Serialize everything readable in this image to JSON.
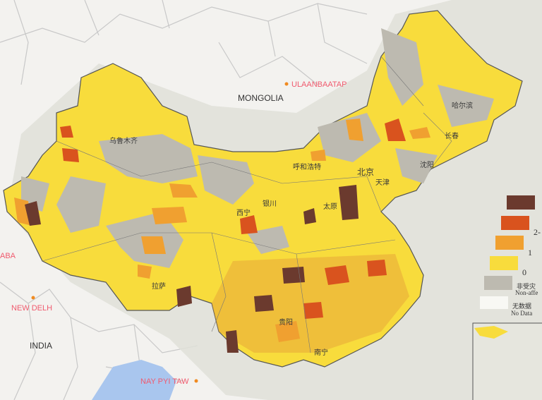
{
  "basemap": {
    "countries": [
      "MONGOLIA",
      "INDIA"
    ],
    "capitals": [
      "ULAANBAATAP",
      "NEW DELH",
      "NAY PYI TAW",
      "ABA"
    ]
  },
  "map_labels": [
    "乌鲁木齐",
    "哈尔滨",
    "长春",
    "沈阳",
    "呼和浩特",
    "北京",
    "天津",
    "西宁",
    "银川",
    "太原",
    "拉萨",
    "贵阳",
    "南宁"
  ],
  "legend": {
    "items": [
      {
        "label": "",
        "color": "#6b3a2e"
      },
      {
        "label": "2-",
        "color": "#d9531e"
      },
      {
        "label": "1",
        "color": "#f0a030"
      },
      {
        "label": "0",
        "color": "#f8dc3c"
      },
      {
        "label": "非受灾",
        "sub": "Non-affe",
        "color": "#bdbab0"
      },
      {
        "label": "无数据",
        "sub": "No Data",
        "color": "#f4f4f0"
      }
    ]
  },
  "colors": {
    "background": "#f3f2ef",
    "halo": "#dfe0d8",
    "water": "#a9c6ee",
    "border": "#c4c4c4"
  }
}
